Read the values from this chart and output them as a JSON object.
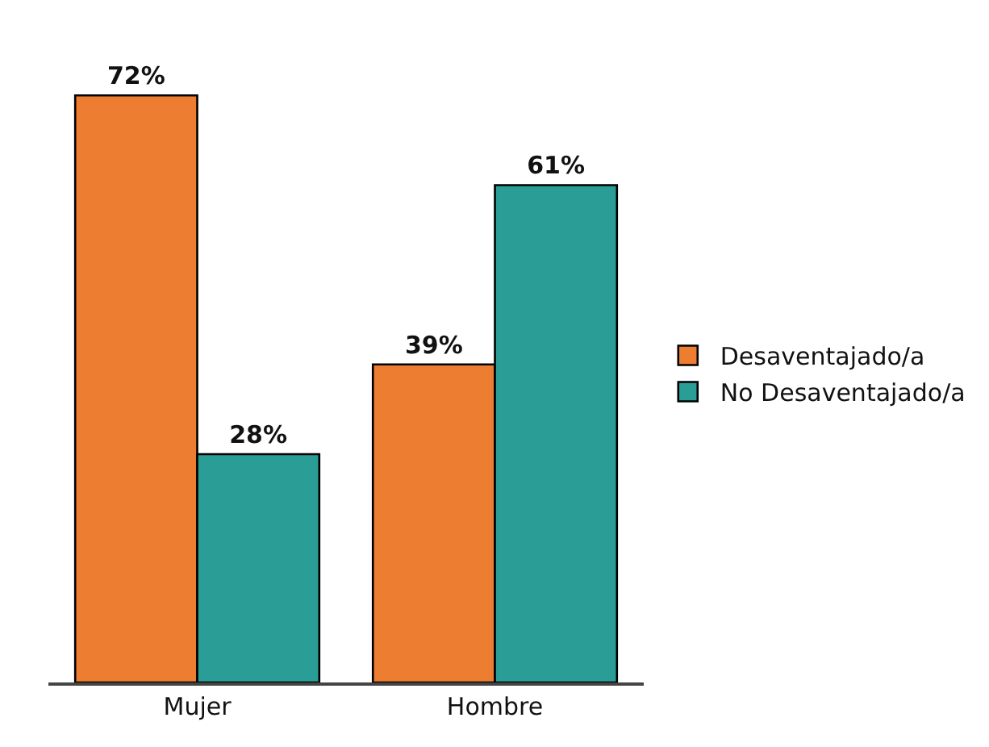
{
  "chart_data": {
    "type": "bar",
    "categories": [
      "Mujer",
      "Hombre"
    ],
    "series": [
      {
        "name": "Desaventajado/a",
        "color": "#ed7d31",
        "values": [
          72,
          39
        ],
        "value_labels": [
          "72%",
          "39%"
        ]
      },
      {
        "name": "No Desaventajado/a",
        "color": "#2a9d96",
        "values": [
          28,
          61
        ],
        "value_labels": [
          "28%",
          "61%"
        ]
      }
    ],
    "legend": "right",
    "grid": false
  }
}
